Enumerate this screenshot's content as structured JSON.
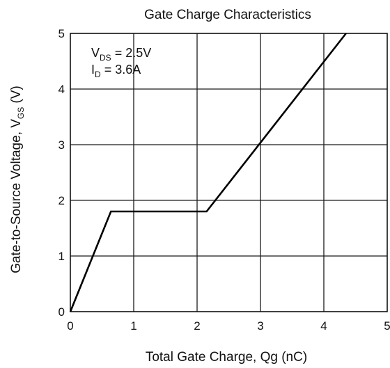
{
  "chart_data": {
    "type": "line",
    "title": "Gate Charge Characteristics",
    "xlabel": "Total Gate Charge, Qg (nC)",
    "ylabel": {
      "prefix": "Gate-to-Source Voltage, V",
      "sub": "GS",
      "suffix": " (V)"
    },
    "xlim": [
      0,
      5
    ],
    "ylim": [
      0,
      5
    ],
    "x_ticks": [
      "0",
      "1",
      "2",
      "3",
      "4",
      "5"
    ],
    "y_ticks": [
      "0",
      "1",
      "2",
      "3",
      "4",
      "5"
    ],
    "grid": true,
    "annotations": [
      {
        "main": "V",
        "sub": "DS",
        "rest": " = 2.5V"
      },
      {
        "main": "I",
        "sub": "D",
        "rest": " = 3.6A"
      }
    ],
    "series": [
      {
        "x": [
          0,
          0.64,
          2.15,
          4.35
        ],
        "y": [
          0,
          1.8,
          1.8,
          5.0
        ]
      }
    ]
  }
}
